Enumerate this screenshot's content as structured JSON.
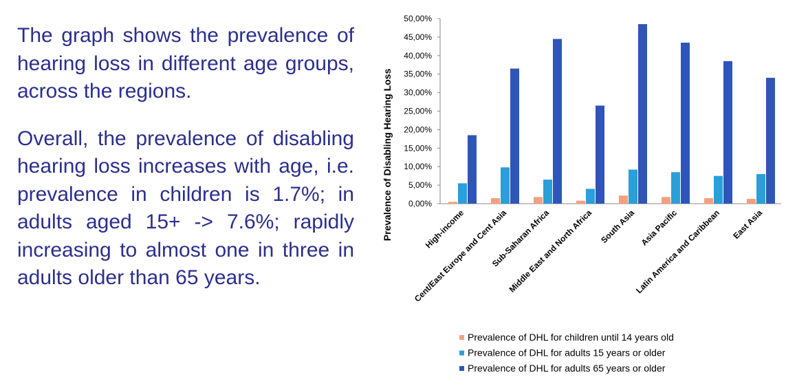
{
  "text": {
    "paragraphs": [
      "The graph shows the prevalence of hearing loss in different age groups, across the regions.",
      "Overall, the prevalence of disabling hearing loss increases with age, i.e. prevalence in children is 1.7%; in adults aged 15+ -> 7.6%; rapidly increasing to almost one in three in adults older than 65 years."
    ]
  },
  "chart_data": {
    "type": "bar",
    "ylabel": "Prevalence of Disabling Hearing Loss",
    "categories": [
      "High-income",
      "Cent/East Europe and Cent Asia",
      "Sub-Saharan Africa",
      "Middle East and North Africa",
      "South Asia",
      "Asia Pacific",
      "Latin America and Caribbean",
      "East Asia"
    ],
    "series": [
      {
        "name": "Prevalence of DHL for children until 14 years old",
        "color": "#f4a07f",
        "values": [
          0.5,
          1.5,
          1.8,
          0.8,
          2.2,
          1.8,
          1.5,
          1.3
        ]
      },
      {
        "name": "Prevalence of DHL for adults 15 years or older",
        "color": "#2a9fd8",
        "values": [
          5.5,
          9.8,
          6.5,
          4.0,
          9.2,
          8.5,
          7.5,
          8.0
        ]
      },
      {
        "name": "Prevalence of DHL for adults 65 years or older",
        "color": "#2f55b8",
        "values": [
          18.5,
          36.5,
          44.5,
          26.5,
          48.5,
          43.5,
          38.5,
          34.0
        ]
      }
    ],
    "ylim": [
      0,
      50
    ],
    "yticks": [
      {
        "value": 0,
        "label": "0,00%"
      },
      {
        "value": 5,
        "label": "5,00%"
      },
      {
        "value": 10,
        "label": "10,00%"
      },
      {
        "value": 15,
        "label": "15,00%"
      },
      {
        "value": 20,
        "label": "20,00%"
      },
      {
        "value": 25,
        "label": "25,00%"
      },
      {
        "value": 30,
        "label": "30,00%"
      },
      {
        "value": 35,
        "label": "35,00%"
      },
      {
        "value": 40,
        "label": "40,00%"
      },
      {
        "value": 45,
        "label": "45,00%"
      },
      {
        "value": 50,
        "label": "50,00%"
      }
    ],
    "legend": "bottom"
  }
}
